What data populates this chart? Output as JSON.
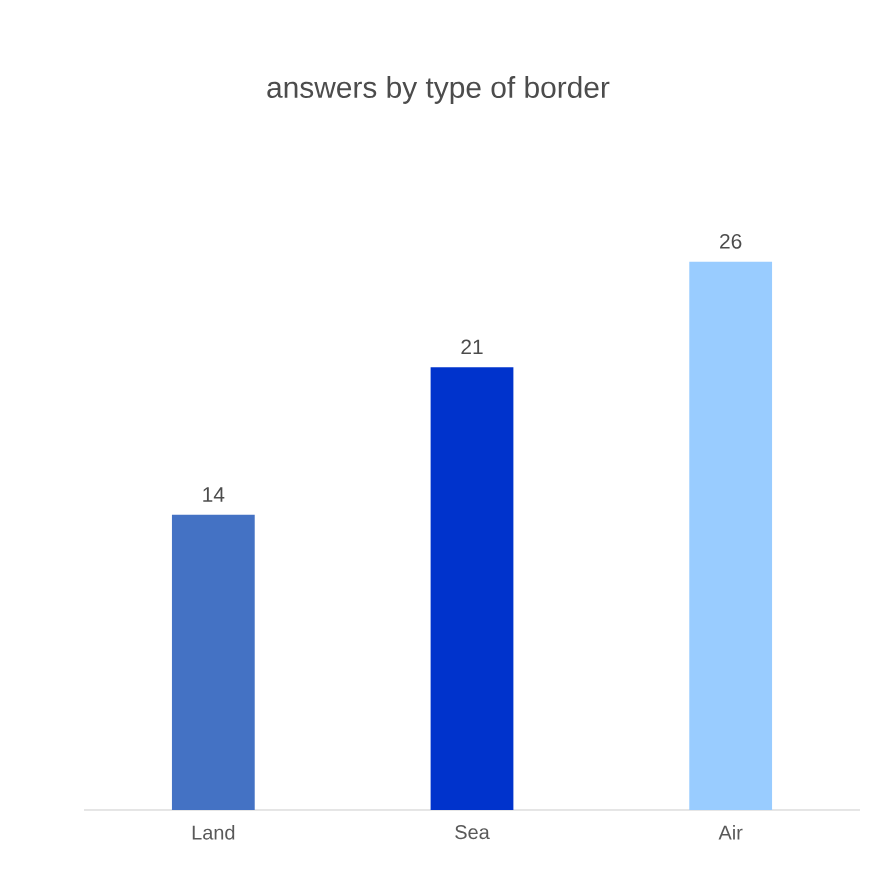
{
  "chart_data": {
    "type": "bar",
    "title": "answers by type of border",
    "categories": [
      "Land",
      "Sea",
      "Air"
    ],
    "values": [
      14,
      21,
      26
    ],
    "colors": [
      "#4472c4",
      "#0033cc",
      "#99ccff"
    ],
    "tick_labels": "x",
    "data_labels": true
  }
}
